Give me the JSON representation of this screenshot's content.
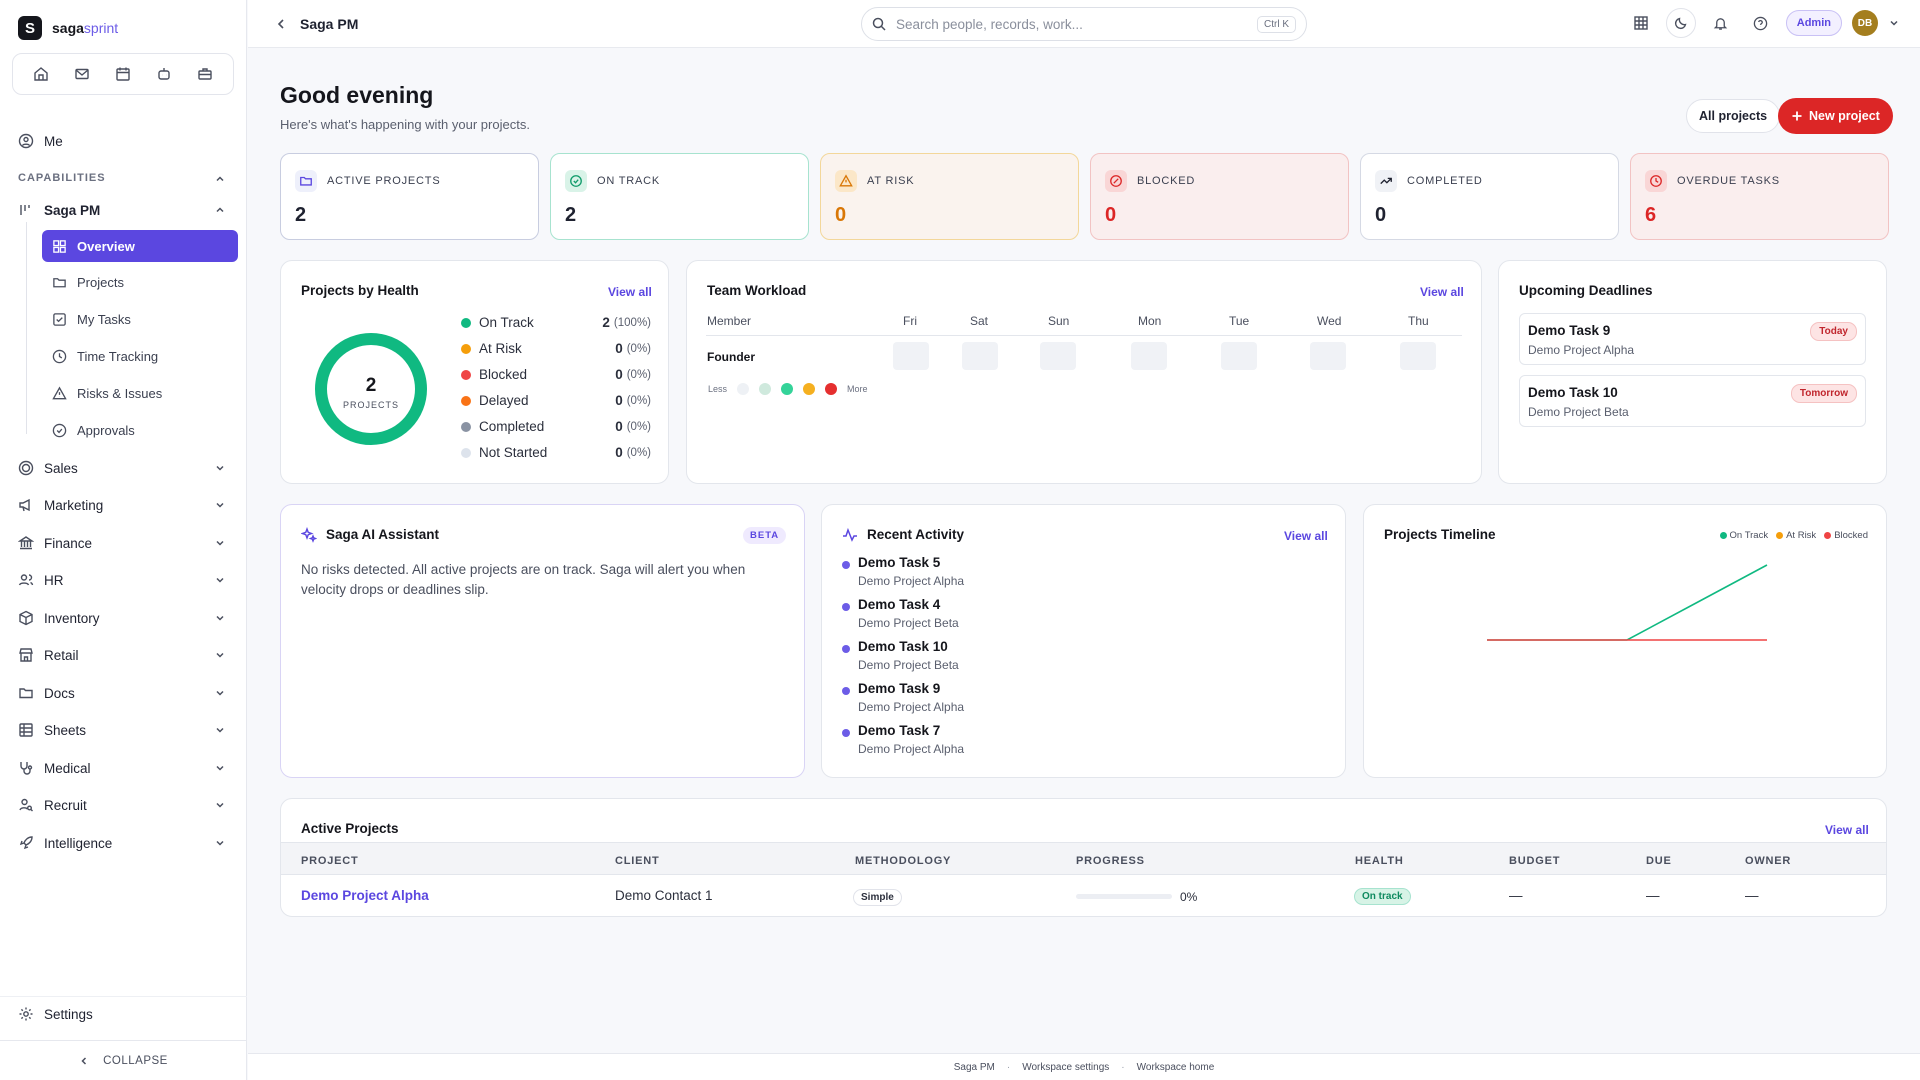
{
  "brand": {
    "name_main": "saga",
    "name_accent": "sprint",
    "logo_letter": "S"
  },
  "sidebar": {
    "me": "Me",
    "section": "CAPABILITIES",
    "group": "Saga PM",
    "sub_items": [
      "Overview",
      "Projects",
      "My Tasks",
      "Time Tracking",
      "Risks & Issues",
      "Approvals"
    ],
    "modules": [
      "Sales",
      "Marketing",
      "Finance",
      "HR",
      "Inventory",
      "Retail",
      "Docs",
      "Sheets",
      "Medical",
      "Recruit",
      "Intelligence"
    ],
    "settings": "Settings",
    "collapse": "COLLAPSE"
  },
  "topbar": {
    "title": "Saga PM",
    "search_placeholder": "Search people, records, work...",
    "shortcut": "Ctrl K",
    "admin": "Admin",
    "avatar": "DB"
  },
  "header": {
    "greeting": "Good evening",
    "subtitle": "Here's what's happening with your projects.",
    "all_projects": "All projects",
    "new_project": "New project"
  },
  "stats": [
    {
      "label": "ACTIVE PROJECTS",
      "value": "2",
      "color": "#1f2230"
    },
    {
      "label": "ON TRACK",
      "value": "2",
      "color": "#1f2230"
    },
    {
      "label": "AT RISK",
      "value": "0",
      "color": "#d97706"
    },
    {
      "label": "BLOCKED",
      "value": "0",
      "color": "#dc2626"
    },
    {
      "label": "COMPLETED",
      "value": "0",
      "color": "#1f2230"
    },
    {
      "label": "OVERDUE TASKS",
      "value": "6",
      "color": "#dc2626"
    }
  ],
  "health": {
    "title": "Projects by Health",
    "view_all": "View all",
    "center_value": "2",
    "center_label": "PROJECTS",
    "rows": [
      {
        "label": "On Track",
        "count": "2",
        "pct": "(100%)",
        "color": "#10b981"
      },
      {
        "label": "At Risk",
        "count": "0",
        "pct": "(0%)",
        "color": "#f59e0b"
      },
      {
        "label": "Blocked",
        "count": "0",
        "pct": "(0%)",
        "color": "#ef4444"
      },
      {
        "label": "Delayed",
        "count": "0",
        "pct": "(0%)",
        "color": "#f97316"
      },
      {
        "label": "Completed",
        "count": "0",
        "pct": "(0%)",
        "color": "#8a93a3"
      },
      {
        "label": "Not Started",
        "count": "0",
        "pct": "(0%)",
        "color": "#dde3ec"
      }
    ]
  },
  "workload": {
    "title": "Team Workload",
    "view_all": "View all",
    "member_header": "Member",
    "days": [
      "Fri",
      "Sat",
      "Sun",
      "Mon",
      "Tue",
      "Wed",
      "Thu"
    ],
    "member": "Founder",
    "less": "Less",
    "more": "More",
    "scale_colors": [
      "#eef1f5",
      "#cfe9dd",
      "#34d399",
      "#f5b020",
      "#e52f2f"
    ]
  },
  "deadlines": {
    "title": "Upcoming Deadlines",
    "items": [
      {
        "task": "Demo Task 9",
        "project": "Demo Project Alpha",
        "badge": "Today"
      },
      {
        "task": "Demo Task 10",
        "project": "Demo Project Beta",
        "badge": "Tomorrow"
      }
    ]
  },
  "assistant": {
    "title": "Saga AI Assistant",
    "badge": "BETA",
    "text": "No risks detected. All active projects are on track. Saga will alert you when velocity drops or deadlines slip."
  },
  "activity": {
    "title": "Recent Activity",
    "view_all": "View all",
    "items": [
      {
        "task": "Demo Task 5",
        "project": "Demo Project Alpha"
      },
      {
        "task": "Demo Task 4",
        "project": "Demo Project Beta"
      },
      {
        "task": "Demo Task 10",
        "project": "Demo Project Beta"
      },
      {
        "task": "Demo Task 9",
        "project": "Demo Project Alpha"
      },
      {
        "task": "Demo Task 7",
        "project": "Demo Project Alpha"
      }
    ]
  },
  "timeline": {
    "title": "Projects Timeline",
    "legend": [
      {
        "label": "On Track",
        "color": "#10b981"
      },
      {
        "label": "At Risk",
        "color": "#f59e0b"
      },
      {
        "label": "Blocked",
        "color": "#ef4444"
      }
    ]
  },
  "chart_data": {
    "type": "line",
    "title": "Projects Timeline",
    "x": [
      0,
      1,
      2,
      3,
      4
    ],
    "series": [
      {
        "name": "On Track",
        "color": "#10b981",
        "values": [
          0,
          0,
          0,
          1,
          2
        ]
      },
      {
        "name": "Blocked",
        "color": "#ef4444",
        "values": [
          0,
          0,
          0,
          0,
          0
        ]
      }
    ],
    "ylim": [
      0,
      2
    ],
    "grid": false,
    "legend": "top-right"
  },
  "projects_table": {
    "title": "Active Projects",
    "view_all": "View all",
    "headers": [
      "PROJECT",
      "CLIENT",
      "METHODOLOGY",
      "PROGRESS",
      "HEALTH",
      "BUDGET",
      "DUE",
      "OWNER"
    ],
    "rows": [
      {
        "project": "Demo Project Alpha",
        "client": "Demo Contact 1",
        "methodology": "Simple",
        "progress": "0%",
        "progress_value": 0,
        "health": "On track",
        "budget": "—",
        "due": "—",
        "owner": "—"
      }
    ]
  },
  "footer": {
    "links": [
      "Saga PM",
      "Workspace settings",
      "Workspace home"
    ],
    "separator": "·"
  }
}
